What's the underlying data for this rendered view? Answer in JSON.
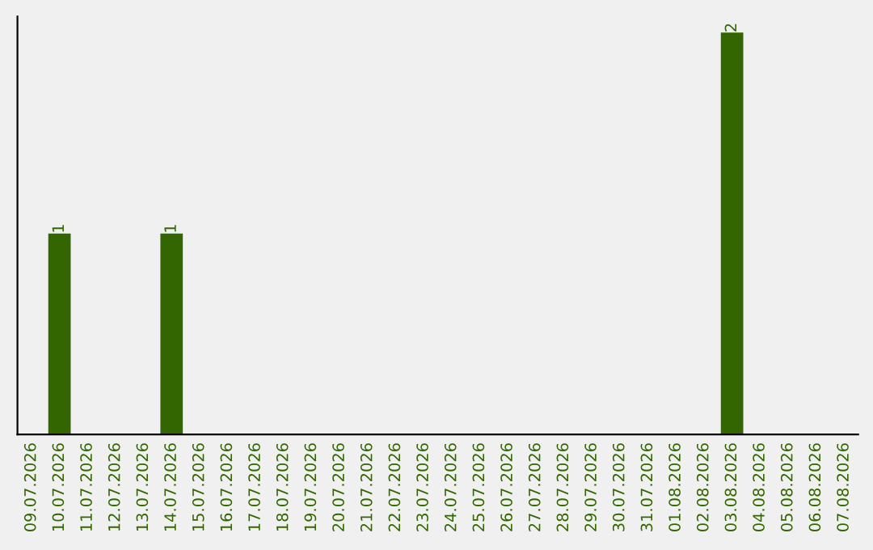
{
  "chart_data": {
    "type": "bar",
    "categories": [
      "09.07.2026",
      "10.07.2026",
      "11.07.2026",
      "12.07.2026",
      "13.07.2026",
      "14.07.2026",
      "15.07.2026",
      "16.07.2026",
      "17.07.2026",
      "18.07.2026",
      "19.07.2026",
      "20.07.2026",
      "21.07.2026",
      "22.07.2026",
      "23.07.2026",
      "24.07.2026",
      "25.07.2026",
      "26.07.2026",
      "27.07.2026",
      "28.07.2026",
      "29.07.2026",
      "30.07.2026",
      "31.07.2026",
      "01.08.2026",
      "02.08.2026",
      "03.08.2026",
      "04.08.2026",
      "05.08.2026",
      "06.08.2026",
      "07.08.2026"
    ],
    "values": [
      0,
      1,
      0,
      0,
      0,
      1,
      0,
      0,
      0,
      0,
      0,
      0,
      0,
      0,
      0,
      0,
      0,
      0,
      0,
      0,
      0,
      0,
      0,
      0,
      0,
      2,
      0,
      0,
      0,
      0
    ],
    "value_labels": [
      null,
      "1",
      null,
      null,
      null,
      "1",
      null,
      null,
      null,
      null,
      null,
      null,
      null,
      null,
      null,
      null,
      null,
      null,
      null,
      null,
      null,
      null,
      null,
      null,
      null,
      "2",
      null,
      null,
      null,
      null
    ],
    "color": "#336600",
    "tick_labels": "x",
    "grid": false,
    "legend": false
  }
}
